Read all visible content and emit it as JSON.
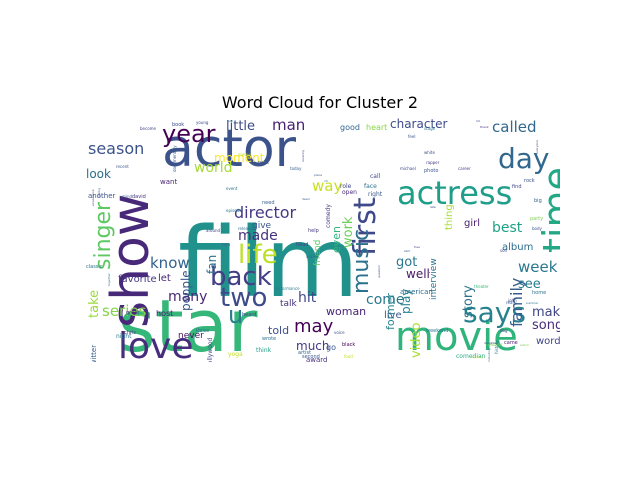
{
  "title": "Word Cloud for Cluster 2",
  "chart_data": {
    "type": "wordcloud",
    "title": "Word Cloud for Cluster 2",
    "background": "#ffffff",
    "colormap": "viridis",
    "words": [
      {
        "text": "film",
        "weight": 100,
        "color": "#21918c"
      },
      {
        "text": "star",
        "weight": 92,
        "color": "#35b779"
      },
      {
        "text": "actor",
        "weight": 80,
        "color": "#3b528b"
      },
      {
        "text": "show",
        "weight": 72,
        "color": "#482878"
      },
      {
        "text": "movie",
        "weight": 55,
        "color": "#2fb47c"
      },
      {
        "text": "time",
        "weight": 50,
        "color": "#22a884"
      },
      {
        "text": "love",
        "weight": 48,
        "color": "#472d7b"
      },
      {
        "text": "actress",
        "weight": 40,
        "color": "#1f9e89"
      },
      {
        "text": "first",
        "weight": 38,
        "color": "#3e4989"
      },
      {
        "text": "year",
        "weight": 34,
        "color": "#440154"
      },
      {
        "text": "day",
        "weight": 33,
        "color": "#31688e"
      },
      {
        "text": "back",
        "weight": 30,
        "color": "#433e85"
      },
      {
        "text": "says",
        "weight": 30,
        "color": "#26828e"
      },
      {
        "text": "two",
        "weight": 30,
        "color": "#3e4a89"
      },
      {
        "text": "life",
        "weight": 26,
        "color": "#bddf26"
      },
      {
        "text": "music",
        "weight": 25,
        "color": "#2c728e"
      },
      {
        "text": "singer",
        "weight": 24,
        "color": "#5ec962"
      },
      {
        "text": "u",
        "weight": 22,
        "color": "#287c8e"
      },
      {
        "text": "season",
        "weight": 18,
        "color": "#3b528b"
      },
      {
        "text": "series",
        "weight": 18,
        "color": "#84d44b"
      },
      {
        "text": "family",
        "weight": 16,
        "color": "#365d8d"
      },
      {
        "text": "may",
        "weight": 18,
        "color": "#440154"
      },
      {
        "text": "director",
        "weight": 16,
        "color": "#443983"
      },
      {
        "text": "called",
        "weight": 16,
        "color": "#31688e"
      },
      {
        "text": "week",
        "weight": 16,
        "color": "#2a788e"
      },
      {
        "text": "know",
        "weight": 15,
        "color": "#33638d"
      },
      {
        "text": "way",
        "weight": 15,
        "color": "#c8e020"
      },
      {
        "text": "made",
        "weight": 14,
        "color": "#46327e"
      },
      {
        "text": "little",
        "weight": 14,
        "color": "#3e4a89"
      },
      {
        "text": "man",
        "weight": 14,
        "color": "#482173"
      },
      {
        "text": "world",
        "weight": 14,
        "color": "#a5db36"
      },
      {
        "text": "work",
        "weight": 14,
        "color": "#6ccd5a"
      },
      {
        "text": "best",
        "weight": 14,
        "color": "#1fa187"
      },
      {
        "text": "many",
        "weight": 14,
        "color": "#482878"
      },
      {
        "text": "come",
        "weight": 13,
        "color": "#2a788e"
      },
      {
        "text": "make",
        "weight": 13,
        "color": "#3f4788"
      },
      {
        "text": "song",
        "weight": 13,
        "color": "#472c7a"
      },
      {
        "text": "video",
        "weight": 13,
        "color": "#addc30"
      },
      {
        "text": "story",
        "weight": 13,
        "color": "#2c738e"
      },
      {
        "text": "take",
        "weight": 13,
        "color": "#9bd93c"
      },
      {
        "text": "hit",
        "weight": 12,
        "color": "#3f4788"
      },
      {
        "text": "see",
        "weight": 12,
        "color": "#287d8e"
      },
      {
        "text": "character",
        "weight": 12,
        "color": "#3e4c8a"
      },
      {
        "text": "moment",
        "weight": 12,
        "color": "#fde725"
      },
      {
        "text": "people",
        "weight": 12,
        "color": "#39568c"
      },
      {
        "text": "fan",
        "weight": 12,
        "color": "#2d708e"
      },
      {
        "text": "much",
        "weight": 12,
        "color": "#443b84"
      },
      {
        "text": "play",
        "weight": 12,
        "color": "#26818e"
      },
      {
        "text": "former",
        "weight": 11,
        "color": "#25848e"
      },
      {
        "text": "got",
        "weight": 12,
        "color": "#2a778e"
      },
      {
        "text": "well",
        "weight": 11,
        "color": "#481769"
      },
      {
        "text": "even",
        "weight": 11,
        "color": "#31b57b"
      },
      {
        "text": "look",
        "weight": 11,
        "color": "#2e6e8e"
      },
      {
        "text": "album",
        "weight": 10,
        "color": "#2e6f8e"
      },
      {
        "text": "girl",
        "weight": 10,
        "color": "#481c6e"
      },
      {
        "text": "woman",
        "weight": 10,
        "color": "#482475"
      },
      {
        "text": "told",
        "weight": 10,
        "color": "#3d4e8a"
      },
      {
        "text": "thing",
        "weight": 10,
        "color": "#a8db34"
      },
      {
        "text": "favorite",
        "weight": 9,
        "color": "#453781"
      },
      {
        "text": "live",
        "weight": 9,
        "color": "#355e8d"
      },
      {
        "text": "word",
        "weight": 9,
        "color": "#404588"
      },
      {
        "text": "interview",
        "weight": 9,
        "color": "#2d718e"
      },
      {
        "text": "friend",
        "weight": 9,
        "color": "#5cc863"
      },
      {
        "text": "let",
        "weight": 9,
        "color": "#482677"
      },
      {
        "text": "never",
        "weight": 9,
        "color": "#471365"
      },
      {
        "text": "give",
        "weight": 9,
        "color": "#3a548c"
      },
      {
        "text": "talk",
        "weight": 9,
        "color": "#46307e"
      },
      {
        "text": "good",
        "weight": 8,
        "color": "#33638d"
      },
      {
        "text": "heart",
        "weight": 8,
        "color": "#8bd646"
      },
      {
        "text": "host",
        "weight": 8,
        "color": "#481a6c"
      },
      {
        "text": "go",
        "weight": 8,
        "color": "#39558c"
      },
      {
        "text": "want",
        "weight": 7,
        "color": "#482475"
      },
      {
        "text": "american",
        "weight": 7,
        "color": "#2e6d8e"
      },
      {
        "text": "award",
        "weight": 7,
        "color": "#46327e"
      },
      {
        "text": "another",
        "weight": 7,
        "color": "#3b528b"
      },
      {
        "text": "twitter",
        "weight": 7,
        "color": "#365c8d"
      },
      {
        "text": "night",
        "weight": 6,
        "color": "#2a788e"
      },
      {
        "text": "comedy",
        "weight": 6,
        "color": "#443983"
      },
      {
        "text": "role",
        "weight": 6,
        "color": "#414487"
      },
      {
        "text": "face",
        "weight": 6,
        "color": "#2c718e"
      },
      {
        "text": "open",
        "weight": 6,
        "color": "#472a7a"
      },
      {
        "text": "right",
        "weight": 6,
        "color": "#38588c"
      },
      {
        "text": "call",
        "weight": 6,
        "color": "#3f4889"
      },
      {
        "text": "yoga",
        "weight": 6,
        "color": "#c2df23"
      },
      {
        "text": "think",
        "weight": 6,
        "color": "#1fa188"
      },
      {
        "text": "comedian",
        "weight": 6,
        "color": "#27ad81"
      },
      {
        "text": "hollywood",
        "weight": 6,
        "color": "#3f4889"
      },
      {
        "text": "home",
        "weight": 5,
        "color": "#2c728e"
      },
      {
        "text": "great",
        "weight": 5,
        "color": "#482576"
      },
      {
        "text": "photo",
        "weight": 5,
        "color": "#39568c"
      },
      {
        "text": "david",
        "weight": 5,
        "color": "#46337f"
      },
      {
        "text": "chris",
        "weight": 5,
        "color": "#433d84"
      },
      {
        "text": "classic",
        "weight": 5,
        "color": "#2c728e"
      },
      {
        "text": "rock",
        "weight": 5,
        "color": "#3b518b"
      },
      {
        "text": "find",
        "weight": 5,
        "color": "#404688"
      },
      {
        "text": "big",
        "weight": 5,
        "color": "#34618d"
      },
      {
        "text": "need",
        "weight": 5,
        "color": "#355f8d"
      },
      {
        "text": "next",
        "weight": 5,
        "color": "#3b528b"
      },
      {
        "text": "came",
        "weight": 5,
        "color": "#481f70"
      },
      {
        "text": "band",
        "weight": 5,
        "color": "#2a768e"
      },
      {
        "text": "black",
        "weight": 5,
        "color": "#440154"
      },
      {
        "text": "wrote",
        "weight": 5,
        "color": "#2d708e"
      },
      {
        "text": "party",
        "weight": 5,
        "color": "#7ad151"
      },
      {
        "text": "book",
        "weight": 5,
        "color": "#3d4d8a"
      },
      {
        "text": "artist",
        "weight": 5,
        "color": "#355e8d"
      },
      {
        "text": "heard",
        "weight": 5,
        "color": "#3e4989"
      },
      {
        "text": "head",
        "weight": 5,
        "color": "#3f4788"
      },
      {
        "text": "help",
        "weight": 5,
        "color": "#453882"
      },
      {
        "text": "three",
        "weight": 5,
        "color": "#2d708e"
      },
      {
        "text": "second",
        "weight": 5,
        "color": "#39568c"
      },
      {
        "text": "weekend",
        "weight": 5,
        "color": "#2a778e"
      },
      {
        "text": "performance",
        "weight": 4,
        "color": "#287d8e"
      },
      {
        "text": "michael",
        "weight": 4,
        "color": "#3f4788"
      },
      {
        "text": "rapper",
        "weight": 4,
        "color": "#46337f"
      },
      {
        "text": "white",
        "weight": 4,
        "color": "#3b518b"
      },
      {
        "text": "mother",
        "weight": 4,
        "color": "#7fd34e"
      },
      {
        "text": "real",
        "weight": 4,
        "color": "#35608d"
      },
      {
        "text": "history",
        "weight": 4,
        "color": "#2c738e"
      },
      {
        "text": "turn",
        "weight": 4,
        "color": "#31688e"
      },
      {
        "text": "feel",
        "weight": 4,
        "color": "#3a538b"
      },
      {
        "text": "stage",
        "weight": 4,
        "color": "#2c728e"
      },
      {
        "text": "become",
        "weight": 4,
        "color": "#3f4788"
      },
      {
        "text": "young",
        "weight": 4,
        "color": "#3e4a89"
      },
      {
        "text": "recent",
        "weight": 4,
        "color": "#3a548c"
      },
      {
        "text": "career",
        "weight": 4,
        "color": "#404688"
      },
      {
        "text": "release",
        "weight": 4,
        "color": "#2e6e8e"
      },
      {
        "text": "dog",
        "weight": 4,
        "color": "#404588"
      },
      {
        "text": "voice",
        "weight": 4,
        "color": "#3c508b"
      },
      {
        "text": "event",
        "weight": 4,
        "color": "#2d708e"
      },
      {
        "text": "mind",
        "weight": 4,
        "color": "#355f8d"
      },
      {
        "text": "always",
        "weight": 4,
        "color": "#c0de22"
      },
      {
        "text": "documentary",
        "weight": 4,
        "color": "#37598c"
      },
      {
        "text": "episode",
        "weight": 4,
        "color": "#2a778e"
      },
      {
        "text": "son",
        "weight": 4,
        "color": "#3e4989"
      },
      {
        "text": "theater",
        "weight": 4,
        "color": "#35b779"
      },
      {
        "text": "john",
        "weight": 4,
        "color": "#3f4788"
      },
      {
        "text": "food",
        "weight": 4,
        "color": "#c2df23"
      },
      {
        "text": "body",
        "weight": 4,
        "color": "#3b528b"
      },
      {
        "text": "around",
        "weight": 4,
        "color": "#404688"
      },
      {
        "text": "today",
        "weight": 4,
        "color": "#34618d"
      },
      {
        "text": "asked",
        "weight": 4,
        "color": "#2f6b8e"
      },
      {
        "text": "daughter",
        "weight": 3,
        "color": "#3d4e8a"
      },
      {
        "text": "everyone",
        "weight": 3,
        "color": "#3e4a89"
      },
      {
        "text": "watch",
        "weight": 3,
        "color": "#7ad151"
      },
      {
        "text": "lot",
        "weight": 3,
        "color": "#3c4f8a"
      },
      {
        "text": "oh",
        "weight": 3,
        "color": "#2f6c8e"
      },
      {
        "text": "tell",
        "weight": 3,
        "color": "#2d708e"
      },
      {
        "text": "thank",
        "weight": 3,
        "color": "#443983"
      },
      {
        "text": "late",
        "weight": 3,
        "color": "#3f4788"
      },
      {
        "text": "dead",
        "weight": 3,
        "color": "#35608d"
      },
      {
        "text": "coming",
        "weight": 3,
        "color": "#a8db34"
      },
      {
        "text": "including",
        "weight": 3,
        "color": "#33638d"
      },
      {
        "text": "experience",
        "weight": 3,
        "color": "#3d4d8a"
      },
      {
        "text": "talking",
        "weight": 3,
        "color": "#365d8d"
      },
      {
        "text": "together",
        "weight": 3,
        "color": "#2c728e"
      },
      {
        "text": "recently",
        "weight": 3,
        "color": "#404688"
      },
      {
        "text": "free",
        "weight": 3,
        "color": "#3e4989"
      },
      {
        "text": "question",
        "weight": 3,
        "color": "#3f4788"
      },
      {
        "text": "skill",
        "weight": 3,
        "color": "#35608d"
      },
      {
        "text": "place",
        "weight": 3,
        "color": "#3b528b"
      },
      {
        "text": "summer",
        "weight": 3,
        "color": "#2d708e"
      }
    ]
  }
}
